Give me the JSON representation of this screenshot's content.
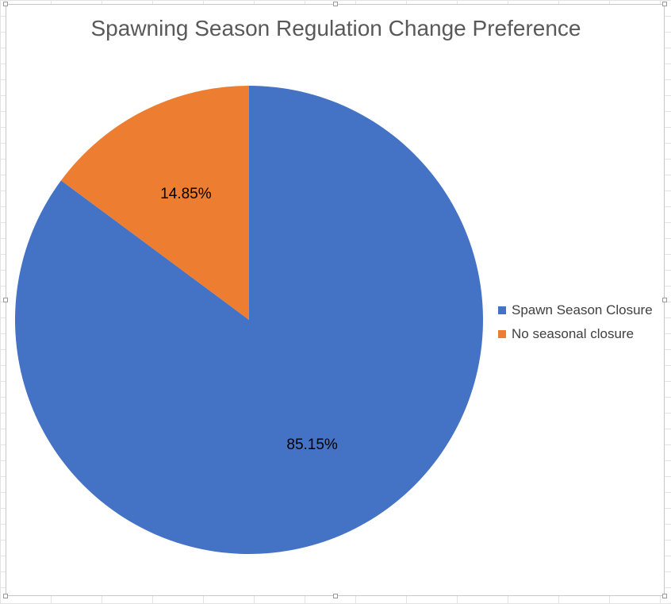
{
  "chart_data": {
    "type": "pie",
    "title": "Spawning Season Regulation Change Preference",
    "start_angle_deg": 0,
    "direction": "clockwise",
    "categories": [
      "Spawn Season Closure",
      "No seasonal closure"
    ],
    "values": [
      85.15,
      14.85
    ],
    "data_labels": [
      "85.15%",
      "14.85%"
    ],
    "colors": [
      "#4472C4",
      "#ED7D31"
    ],
    "legend_position": "right"
  }
}
